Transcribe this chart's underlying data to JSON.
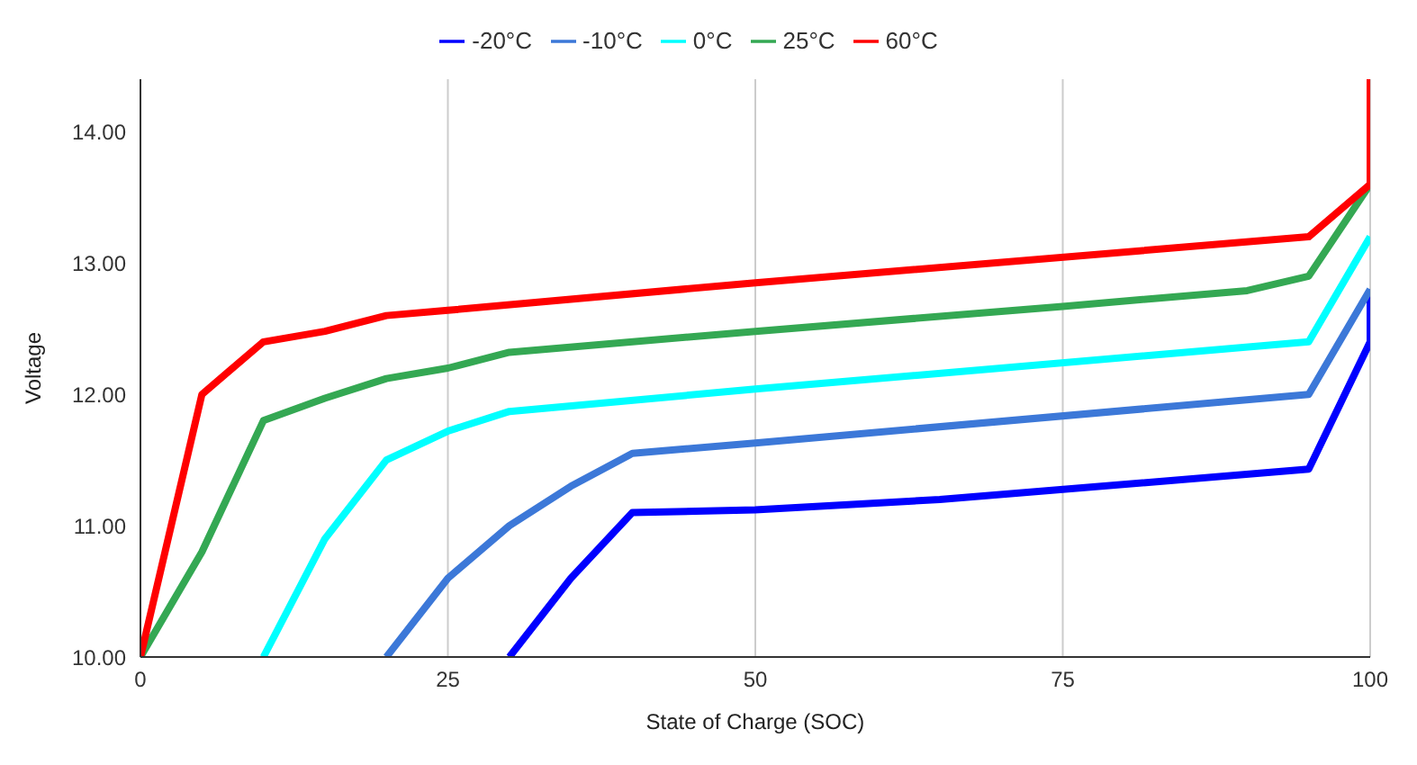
{
  "chart_data": {
    "type": "line",
    "xlabel": "State of Charge (SOC)",
    "ylabel": "Voltage",
    "xlim": [
      0,
      100
    ],
    "xticks": [
      0,
      25,
      50,
      75,
      100
    ],
    "ylim": [
      10,
      14.4
    ],
    "yticks": [
      {
        "value": 10,
        "label": "10.00"
      },
      {
        "value": 11,
        "label": "11.00"
      },
      {
        "value": 12,
        "label": "12.00"
      },
      {
        "value": 13,
        "label": "13.00"
      },
      {
        "value": 14,
        "label": "14.00"
      }
    ],
    "grid": "x",
    "legend": "top",
    "marker": "none",
    "line_style": "solid",
    "series": [
      {
        "name": "-20°C",
        "color": "#0000ff",
        "x": [
          30,
          35,
          40,
          50,
          65,
          95,
          100,
          100
        ],
        "values": [
          10,
          10.6,
          11.1,
          11.12,
          11.2,
          11.43,
          12.4,
          12.8
        ]
      },
      {
        "name": "-10°C",
        "color": "#3c78d8",
        "x": [
          20,
          25,
          30,
          35,
          40,
          50,
          95,
          100
        ],
        "values": [
          10,
          10.6,
          11,
          11.3,
          11.55,
          11.63,
          12,
          12.8
        ]
      },
      {
        "name": "0°C",
        "color": "#00ffff",
        "x": [
          10,
          15,
          20,
          25,
          30,
          50,
          95,
          100
        ],
        "values": [
          10,
          10.9,
          11.5,
          11.72,
          11.87,
          12.04,
          12.4,
          13.2
        ]
      },
      {
        "name": "25°C",
        "color": "#34a853",
        "x": [
          0,
          5,
          10,
          15,
          20,
          25,
          30,
          50,
          75,
          90,
          95,
          100
        ],
        "values": [
          10,
          10.8,
          11.8,
          11.97,
          12.12,
          12.2,
          12.32,
          12.48,
          12.67,
          12.79,
          12.9,
          13.6
        ]
      },
      {
        "name": "60°C",
        "color": "#ff0000",
        "x": [
          0,
          5,
          10,
          15,
          20,
          25,
          50,
          95,
          100,
          100
        ],
        "values": [
          10,
          12,
          12.4,
          12.48,
          12.6,
          12.64,
          12.85,
          13.2,
          13.6,
          14.4
        ]
      }
    ]
  }
}
